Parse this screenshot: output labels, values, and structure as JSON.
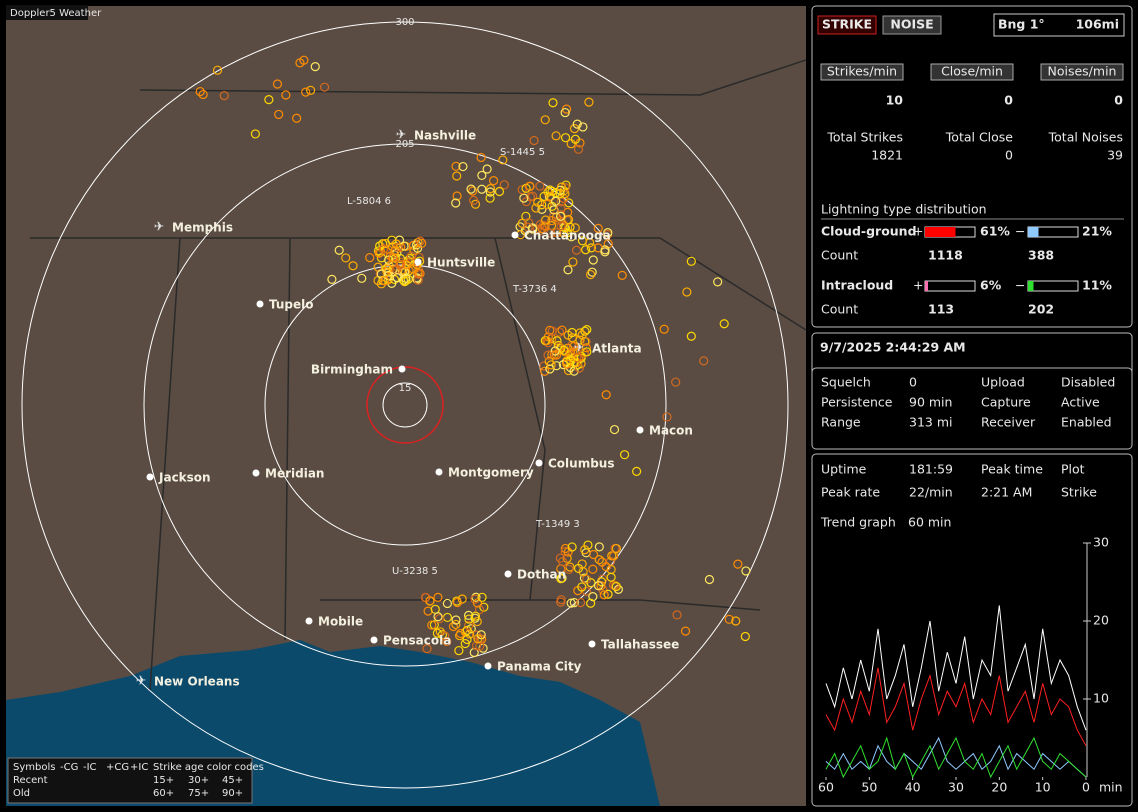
{
  "header": {
    "app_title": "Doppler5 Weather"
  },
  "map": {
    "range_labels": [
      300,
      205,
      15
    ],
    "cities": [
      "Nashville",
      "Memphis",
      "Huntsville",
      "Chattanooga",
      "Tupelo",
      "Atlanta",
      "Birmingham",
      "Macon",
      "Jackson",
      "Meridian",
      "Montgomery",
      "Columbus",
      "Dothan",
      "Mobile",
      "Pensacola",
      "Tallahassee",
      "Panama City",
      "New Orleans"
    ],
    "storm_labels": [
      "S-1445 5",
      "L-5804 6",
      "T-3736 4",
      "T-1349 3",
      "U-3238 5"
    ],
    "legend": {
      "symbols": "Symbols",
      "types": [
        "-CG",
        "-IC",
        "+CG",
        "+IC"
      ],
      "age_title": "Strike age color codes",
      "recent": "Recent",
      "old": "Old",
      "recent_ages": [
        "15+",
        "30+",
        "45+"
      ],
      "old_ages": [
        "60+",
        "75+",
        "90+"
      ]
    }
  },
  "status": {
    "strike_button": "STRIKE",
    "noise_button": "NOISE",
    "bearing": "Bng 1°",
    "distance": "106mi"
  },
  "rates": {
    "headers": [
      "Strikes/min",
      "Close/min",
      "Noises/min"
    ],
    "values": [
      10,
      0,
      0
    ],
    "total_labels": [
      "Total Strikes",
      "Total Close",
      "Total Noises"
    ],
    "totals": [
      1821,
      0,
      39
    ]
  },
  "distribution": {
    "title": "Lightning type distribution",
    "plus_sign": "+",
    "minus_sign": "−",
    "rows": [
      {
        "name": "Cloud-ground",
        "plus": {
          "value": 61,
          "label": "61%"
        },
        "minus": {
          "value": 21,
          "label": "21%"
        },
        "count_label": "Count",
        "counts": [
          1118,
          388
        ]
      },
      {
        "name": "Intracloud",
        "plus": {
          "value": 6,
          "label": "6%"
        },
        "minus": {
          "value": 11,
          "label": "11%"
        },
        "count_label": "Count",
        "counts": [
          113,
          202
        ]
      }
    ]
  },
  "datetime": "9/7/2025 2:44:29 AM",
  "settings": [
    [
      "Squelch",
      "0",
      "Upload",
      "Disabled"
    ],
    [
      "Persistence",
      "90 min",
      "Capture",
      "Active"
    ],
    [
      "Range",
      "313 mi",
      "Receiver",
      "Enabled"
    ]
  ],
  "uptime": [
    [
      "Uptime",
      "181:59",
      "Peak time",
      "Plot"
    ],
    [
      "Peak rate",
      "22/min",
      "2:21 AM",
      "Strike"
    ]
  ],
  "trend_label": "Trend graph",
  "trend_window": "60 min",
  "trend_graph": {
    "type": "line",
    "x_label": "min",
    "xlim": [
      60,
      0
    ],
    "xticks": [
      60,
      50,
      40,
      30,
      20,
      10,
      0
    ],
    "ylim": [
      0,
      30
    ],
    "yticks": [
      10,
      20,
      30
    ],
    "x": [
      60,
      58,
      56,
      54,
      52,
      50,
      48,
      46,
      44,
      42,
      40,
      38,
      36,
      34,
      32,
      30,
      28,
      26,
      24,
      22,
      20,
      18,
      16,
      14,
      12,
      10,
      8,
      6,
      4,
      2,
      0
    ],
    "series": [
      {
        "color": "#ffffff",
        "values": [
          12,
          9,
          14,
          10,
          15,
          11,
          19,
          10,
          13,
          17,
          9,
          14,
          20,
          11,
          16,
          12,
          18,
          10,
          15,
          13,
          22,
          11,
          14,
          17,
          10,
          19,
          12,
          15,
          13,
          9,
          6
        ]
      },
      {
        "color": "#ff2020",
        "values": [
          8,
          6,
          10,
          7,
          11,
          8,
          14,
          7,
          9,
          12,
          6,
          10,
          13,
          8,
          11,
          9,
          12,
          7,
          10,
          8,
          13,
          7,
          9,
          11,
          7,
          12,
          8,
          10,
          9,
          6,
          4
        ]
      },
      {
        "color": "#8ec9ff",
        "values": [
          2,
          1,
          3,
          1,
          2,
          1,
          4,
          2,
          1,
          3,
          2,
          1,
          3,
          5,
          2,
          1,
          2,
          3,
          1,
          2,
          4,
          1,
          3,
          2,
          1,
          3,
          2,
          1,
          2,
          1,
          0
        ]
      },
      {
        "color": "#30e030",
        "values": [
          1,
          3,
          0,
          2,
          4,
          1,
          2,
          5,
          1,
          3,
          0,
          2,
          4,
          1,
          3,
          5,
          2,
          1,
          3,
          0,
          2,
          4,
          1,
          3,
          5,
          2,
          1,
          3,
          2,
          1,
          0
        ]
      }
    ]
  }
}
